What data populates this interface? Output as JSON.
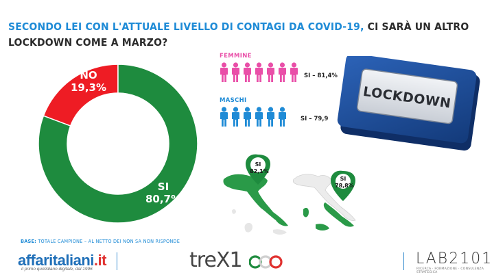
{
  "question": {
    "part1": "Secondo lei con l'attuale livello di contagi da Covid-19,",
    "part2": "ci sarà un altro lockdown come a marzo?"
  },
  "chart_data": {
    "type": "pie",
    "categories": [
      "SI",
      "NO"
    ],
    "values": [
      80.7,
      19.3
    ],
    "value_labels": [
      "80,7%",
      "19,3%"
    ],
    "colors": [
      "#1e8b3e",
      "#ee1c24"
    ]
  },
  "gender": {
    "female_title": "FEMMINE",
    "female_value": "SI – 81,4%",
    "female_icon_count": 7,
    "male_title": "MASCHI",
    "male_value": "SI – 79,9",
    "male_icon_count": 6,
    "female_color": "#e94fa8",
    "male_color": "#1f8bd6"
  },
  "lockdown_image": {
    "text": "LOCKDOWN"
  },
  "regions": [
    {
      "label": "SI",
      "value": "82,1%"
    },
    {
      "label": "SI",
      "value": "78,8%"
    }
  ],
  "base_note": {
    "prefix": "BASE:",
    "text": "TOTALE CAMPIONE – AL NETTO DEI NON SA NON RISPONDE"
  },
  "footer": {
    "brand_main": "affaritaliani",
    "brand_tld": ".it",
    "brand_sub": "il primo quotidiano digitale, dal 1996",
    "trex": "treX1",
    "lab": "LAB2101",
    "lab_sub": "RICERCA · FORMAZIONE · CONSULENZA STRATEGICA"
  }
}
